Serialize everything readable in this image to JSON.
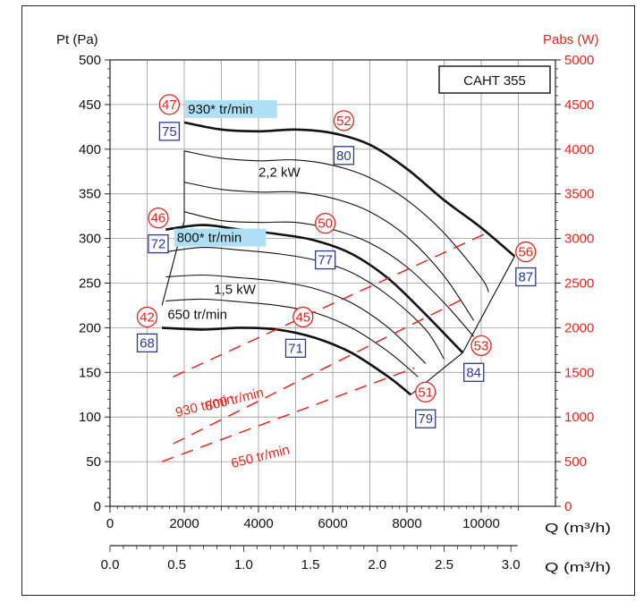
{
  "chart_data": {
    "type": "line",
    "model_label": "CAHT 355",
    "left_axis_label": "Pt (Pa)",
    "right_axis_label": "Pabs (W)",
    "bottom_axis_label_1": "Q (m³/h)",
    "bottom_axis_label_2": "Q (m³/h)",
    "xlim": [
      0,
      12000
    ],
    "ylim": [
      0,
      500
    ],
    "y2lim": [
      0,
      5000
    ],
    "x_ticks": [
      0,
      2000,
      4000,
      6000,
      8000,
      10000
    ],
    "x_tick_labels": [
      "0",
      "2000",
      "4000",
      "6000",
      "8000",
      "10000"
    ],
    "x2_ticks": [
      0.0,
      0.5,
      1.0,
      1.5,
      2.0,
      2.5,
      3.0
    ],
    "x2_tick_labels": [
      "0.0",
      "0.5",
      "1.0",
      "1.5",
      "2.0",
      "2.5",
      "3.0"
    ],
    "y_ticks": [
      0,
      50,
      100,
      150,
      200,
      250,
      300,
      350,
      400,
      450,
      500
    ],
    "y_tick_labels": [
      "0",
      "50",
      "100",
      "150",
      "200",
      "250",
      "300",
      "350",
      "400",
      "450",
      "500"
    ],
    "y2_ticks": [
      0,
      500,
      1000,
      1500,
      2000,
      2500,
      3000,
      3500,
      4000,
      4500,
      5000
    ],
    "y2_tick_labels": [
      "0",
      "500",
      "1000",
      "1500",
      "2000",
      "2500",
      "3000",
      "3500",
      "4000",
      "4500",
      "5000"
    ],
    "grid": true,
    "pressure_curves": [
      {
        "name": "930* tr/min",
        "bold": true,
        "x": [
          2000,
          3000,
          4000,
          5000,
          6000,
          7000,
          8000,
          9000,
          10000,
          10900
        ],
        "y": [
          430,
          422,
          420,
          422,
          418,
          405,
          378,
          343,
          312,
          280
        ]
      },
      {
        "bold": false,
        "x": [
          2000,
          3000,
          4000,
          5000,
          6000,
          7000,
          8000,
          9000,
          10000,
          10200
        ],
        "y": [
          398,
          390,
          387,
          388,
          382,
          368,
          343,
          306,
          256,
          240
        ]
      },
      {
        "name": "2,2 kW",
        "bold": false,
        "x": [
          2000,
          3000,
          4000,
          5000,
          6000,
          7000,
          8000,
          9000,
          9800
        ],
        "y": [
          363,
          355,
          352,
          352,
          345,
          330,
          302,
          258,
          208
        ]
      },
      {
        "bold": false,
        "x": [
          2000,
          3000,
          4000,
          5000,
          6000,
          7000,
          8000,
          9000,
          9800
        ],
        "y": [
          330,
          320,
          318,
          318,
          310,
          295,
          268,
          228,
          190
        ]
      },
      {
        "name": "800* tr/min",
        "bold": true,
        "x": [
          1500,
          2500,
          3500,
          4500,
          5500,
          6500,
          7500,
          8500,
          9500
        ],
        "y": [
          310,
          315,
          310,
          305,
          298,
          283,
          255,
          215,
          172
        ]
      },
      {
        "bold": false,
        "x": [
          1500,
          2500,
          3500,
          4500,
          5500,
          6500,
          7500,
          8500,
          9000
        ],
        "y": [
          285,
          290,
          287,
          283,
          276,
          262,
          236,
          198,
          165
        ]
      },
      {
        "name": "1,5 kW",
        "bold": false,
        "x": [
          1500,
          2500,
          3500,
          4500,
          5500,
          6500,
          7500,
          8500
        ],
        "y": [
          257,
          259,
          256,
          252,
          244,
          228,
          200,
          160
        ]
      },
      {
        "bold": false,
        "x": [
          1500,
          2500,
          3500,
          4500,
          5500,
          6500,
          7500,
          8300
        ],
        "y": [
          230,
          232,
          229,
          225,
          217,
          200,
          173,
          145
        ]
      },
      {
        "name": "650 tr/min",
        "bold": true,
        "x": [
          1400,
          2500,
          3500,
          4500,
          5500,
          6500,
          7500,
          8100
        ],
        "y": [
          200,
          198,
          200,
          198,
          189,
          172,
          145,
          125
        ]
      }
    ],
    "boundary_line": {
      "x": [
        1400,
        2000,
        2000
      ],
      "y": [
        225,
        320,
        398
      ]
    },
    "right_boundary": {
      "x": [
        8100,
        9500,
        10900
      ],
      "y": [
        125,
        172,
        280
      ]
    },
    "power_curves": [
      {
        "name": "930 tr/min",
        "x": [
          1700,
          10200
        ],
        "y": [
          1450,
          3070
        ]
      },
      {
        "name": "800 tr/min",
        "x": [
          1700,
          9500
        ],
        "y": [
          700,
          2320
        ]
      },
      {
        "name": "650 tr/min",
        "x": [
          1400,
          8200
        ],
        "y": [
          500,
          1550
        ]
      }
    ],
    "annotations_red": [
      {
        "text": "47",
        "x": 1600,
        "y": 450
      },
      {
        "text": "52",
        "x": 6300,
        "y": 432
      },
      {
        "text": "46",
        "x": 1300,
        "y": 323
      },
      {
        "text": "50",
        "x": 5800,
        "y": 317
      },
      {
        "text": "42",
        "x": 1000,
        "y": 212
      },
      {
        "text": "45",
        "x": 5200,
        "y": 212
      },
      {
        "text": "56",
        "x": 11200,
        "y": 285
      },
      {
        "text": "53",
        "x": 10000,
        "y": 180
      },
      {
        "text": "51",
        "x": 8500,
        "y": 128
      }
    ],
    "annotations_blue": [
      {
        "text": "75",
        "x": 1600,
        "y": 420
      },
      {
        "text": "80",
        "x": 6300,
        "y": 393
      },
      {
        "text": "72",
        "x": 1300,
        "y": 294
      },
      {
        "text": "77",
        "x": 5800,
        "y": 276
      },
      {
        "text": "68",
        "x": 1000,
        "y": 183
      },
      {
        "text": "71",
        "x": 5000,
        "y": 177
      },
      {
        "text": "87",
        "x": 11200,
        "y": 257
      },
      {
        "text": "84",
        "x": 9800,
        "y": 150
      },
      {
        "text": "79",
        "x": 8500,
        "y": 98
      }
    ],
    "curve_labels": [
      {
        "text": "930* tr/min",
        "x": 2100,
        "y": 440,
        "highlight": true
      },
      {
        "text": "2,2 kW",
        "x": 4000,
        "y": 369,
        "highlight": false
      },
      {
        "text": "800* tr/min",
        "x": 1800,
        "y": 296,
        "highlight": true
      },
      {
        "text": "1,5 kW",
        "x": 2800,
        "y": 238,
        "highlight": false
      },
      {
        "text": "650 tr/min",
        "x": 1550,
        "y": 210,
        "highlight": false
      }
    ],
    "power_labels": [
      {
        "text": "930 tr/min",
        "x": 1800,
        "y": 1000
      },
      {
        "text": "800 tr/min",
        "x": 2600,
        "y": 1070
      },
      {
        "text": "650 tr/min",
        "x": 3300,
        "y": 430
      }
    ]
  }
}
